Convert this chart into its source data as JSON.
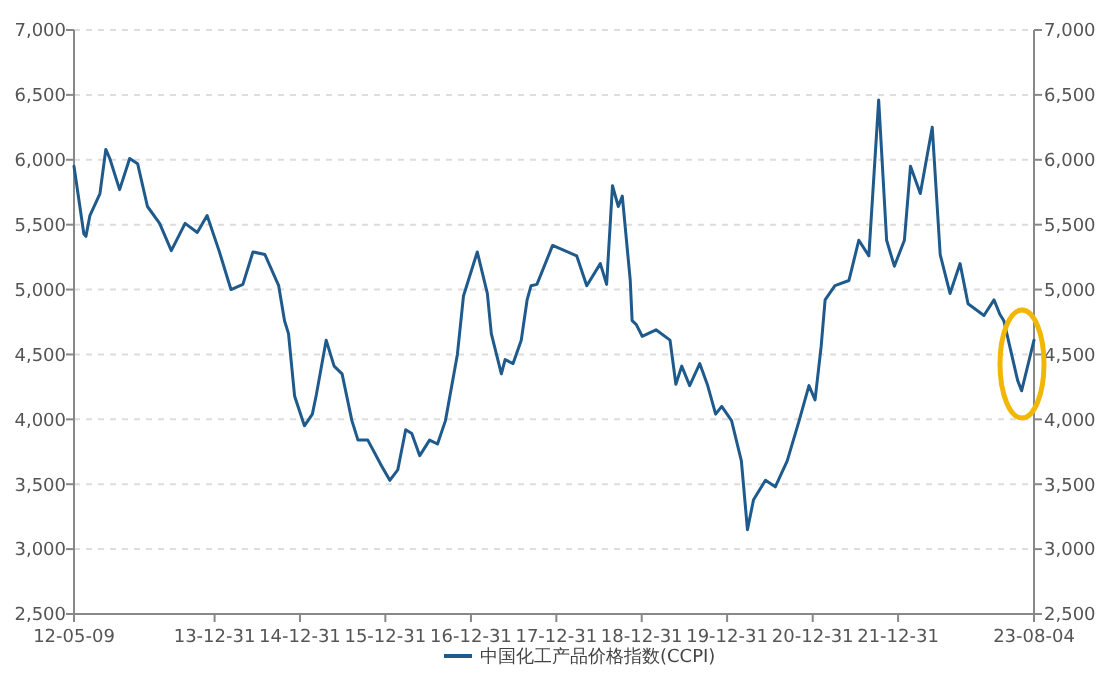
{
  "chart_data": {
    "type": "line",
    "x": [
      "2012-05-09",
      "2012-05-26",
      "2012-06-20",
      "2012-06-29",
      "2012-07-16",
      "2012-08-28",
      "2012-09-22",
      "2012-10-09",
      "2012-11-20",
      "2013-01-02",
      "2013-02-05",
      "2013-03-19",
      "2013-05-10",
      "2013-06-29",
      "2013-08-27",
      "2013-10-18",
      "2013-11-29",
      "2014-01-19",
      "2014-03-11",
      "2014-05-01",
      "2014-06-13",
      "2014-08-03",
      "2014-10-01",
      "2014-10-26",
      "2014-11-12",
      "2014-12-08",
      "2015-01-19",
      "2015-02-22",
      "2015-03-11",
      "2015-04-22",
      "2015-05-26",
      "2015-06-29",
      "2015-08-10",
      "2015-09-05",
      "2015-10-17",
      "2015-12-15",
      "2016-01-19",
      "2016-02-22",
      "2016-03-27",
      "2016-04-22",
      "2016-05-26",
      "2016-07-07",
      "2016-08-10",
      "2016-09-13",
      "2016-11-03",
      "2016-11-29",
      "2017-01-27",
      "2017-03-11",
      "2017-03-28",
      "2017-05-10",
      "2017-05-26",
      "2017-06-29",
      "2017-08-03",
      "2017-08-28",
      "2017-09-14",
      "2017-10-09",
      "2017-12-15",
      "2018-03-28",
      "2018-05-10",
      "2018-07-07",
      "2018-08-03",
      "2018-08-28",
      "2018-09-22",
      "2018-10-09",
      "2018-11-12",
      "2018-11-20",
      "2018-12-08",
      "2019-01-02",
      "2019-03-02",
      "2019-05-01",
      "2019-05-26",
      "2019-06-20",
      "2019-07-24",
      "2019-09-05",
      "2019-10-09",
      "2019-11-12",
      "2019-12-08",
      "2020-01-19",
      "2020-03-01",
      "2020-03-27",
      "2020-04-22",
      "2020-06-12",
      "2020-07-24",
      "2020-09-13",
      "2020-11-03",
      "2020-12-15",
      "2021-01-10",
      "2021-02-05",
      "2021-02-22",
      "2021-04-05",
      "2021-06-04",
      "2021-07-16",
      "2021-08-28",
      "2021-10-09",
      "2021-11-12",
      "2021-12-15",
      "2022-01-27",
      "2022-02-22",
      "2022-04-05",
      "2022-05-26",
      "2022-06-29",
      "2022-08-10",
      "2022-09-22",
      "2022-10-26",
      "2023-01-02",
      "2023-02-14",
      "2023-03-11",
      "2023-03-28",
      "2023-05-26",
      "2023-06-12",
      "2023-08-04"
    ],
    "series": [
      {
        "name": "中国化工产品价格指数(CCPI)",
        "color": "#1f5a8c",
        "values": [
          5950,
          5740,
          5430,
          5410,
          5570,
          5740,
          6080,
          6010,
          5770,
          6010,
          5970,
          5640,
          5510,
          5300,
          5510,
          5440,
          5570,
          5300,
          5000,
          5040,
          5290,
          5270,
          5030,
          4760,
          4660,
          4180,
          3950,
          4040,
          4190,
          4610,
          4410,
          4350,
          3990,
          3840,
          3840,
          3640,
          3530,
          3610,
          3920,
          3890,
          3720,
          3840,
          3810,
          3990,
          4500,
          4950,
          5290,
          4970,
          4660,
          4350,
          4460,
          4430,
          4610,
          4920,
          5030,
          5040,
          5340,
          5260,
          5030,
          5200,
          5040,
          5800,
          5640,
          5720,
          5070,
          4760,
          4730,
          4640,
          4690,
          4610,
          4270,
          4410,
          4260,
          4430,
          4260,
          4040,
          4100,
          3990,
          3680,
          3150,
          3380,
          3530,
          3480,
          3680,
          3990,
          4260,
          4150,
          4560,
          4920,
          5030,
          5070,
          5380,
          5260,
          6460,
          5380,
          5180,
          5380,
          5950,
          5740,
          6250,
          5270,
          4970,
          5200,
          4890,
          4800,
          4920,
          4810,
          4760,
          4300,
          4220,
          4610
        ]
      }
    ],
    "xlim": [
      "2012-05-09",
      "2023-08-04"
    ],
    "xticks": [
      {
        "value": "2012-05-09",
        "label": "12-05-09"
      },
      {
        "value": "2013-12-31",
        "label": "13-12-31"
      },
      {
        "value": "2014-12-31",
        "label": "14-12-31"
      },
      {
        "value": "2015-12-31",
        "label": "15-12-31"
      },
      {
        "value": "2016-12-31",
        "label": "16-12-31"
      },
      {
        "value": "2017-12-31",
        "label": "17-12-31"
      },
      {
        "value": "2018-12-31",
        "label": "18-12-31"
      },
      {
        "value": "2019-12-31",
        "label": "19-12-31"
      },
      {
        "value": "2020-12-31",
        "label": "20-12-31"
      },
      {
        "value": "2021-12-31",
        "label": "21-12-31"
      },
      {
        "value": "2023-08-04",
        "label": "23-08-04"
      }
    ],
    "ylim": [
      2500,
      7000
    ],
    "yticks": [
      {
        "value": 2500,
        "label": "2,500"
      },
      {
        "value": 3000,
        "label": "3,000"
      },
      {
        "value": 3500,
        "label": "3,500"
      },
      {
        "value": 4000,
        "label": "4,000"
      },
      {
        "value": 4500,
        "label": "4,500"
      },
      {
        "value": 5000,
        "label": "5,000"
      },
      {
        "value": 5500,
        "label": "5,500"
      },
      {
        "value": 6000,
        "label": "6,000"
      },
      {
        "value": 6500,
        "label": "6,500"
      },
      {
        "value": 7000,
        "label": "7,000"
      }
    ],
    "y2lim": [
      2500,
      7000
    ],
    "y2ticks": [
      {
        "value": 2500,
        "label": "2,500"
      },
      {
        "value": 3000,
        "label": "3,000"
      },
      {
        "value": 3500,
        "label": "3,500"
      },
      {
        "value": 4000,
        "label": "4,000"
      },
      {
        "value": 4500,
        "label": "4,500"
      },
      {
        "value": 5000,
        "label": "5,000"
      },
      {
        "value": 5500,
        "label": "5,500"
      },
      {
        "value": 6000,
        "label": "6,000"
      },
      {
        "value": 6500,
        "label": "6,500"
      },
      {
        "value": 7000,
        "label": "7,000"
      }
    ],
    "grid": "y",
    "legend": "bottom",
    "marker": "none",
    "line_style": "solid"
  }
}
